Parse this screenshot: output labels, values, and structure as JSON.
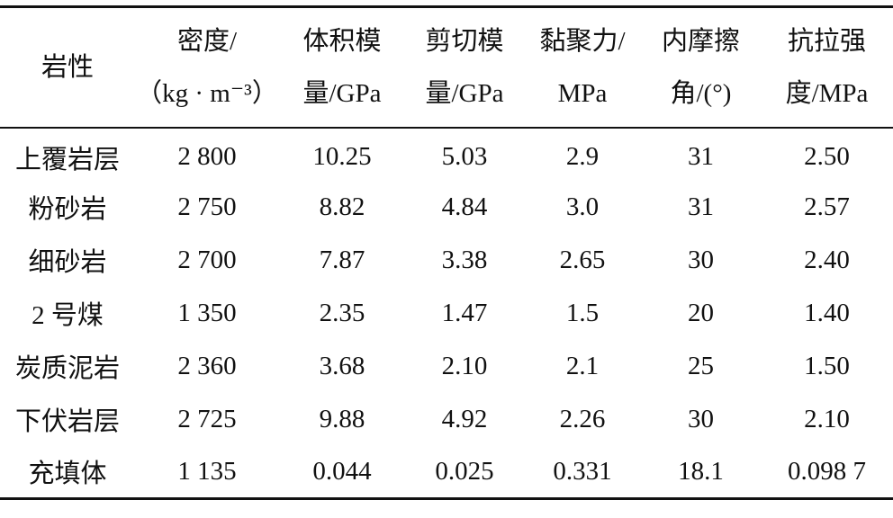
{
  "table": {
    "header": [
      [
        "岩性"
      ],
      [
        "密度/",
        "（kg · m⁻³）"
      ],
      [
        "体积模",
        "量/GPa"
      ],
      [
        "剪切模",
        "量/GPa"
      ],
      [
        "黏聚力/",
        "MPa"
      ],
      [
        "内摩擦",
        "角/(°)"
      ],
      [
        "抗拉强",
        "度/MPa"
      ]
    ],
    "rows": [
      [
        "上覆岩层",
        "2 800",
        "10.25",
        "5.03",
        "2.9",
        "31",
        "2.50"
      ],
      [
        "粉砂岩",
        "2 750",
        "8.82",
        "4.84",
        "3.0",
        "31",
        "2.57"
      ],
      [
        "细砂岩",
        "2 700",
        "7.87",
        "3.38",
        "2.65",
        "30",
        "2.40"
      ],
      [
        "2 号煤",
        "1 350",
        "2.35",
        "1.47",
        "1.5",
        "20",
        "1.40"
      ],
      [
        "炭质泥岩",
        "2 360",
        "3.68",
        "2.10",
        "2.1",
        "25",
        "1.50"
      ],
      [
        "下伏岩层",
        "2 725",
        "9.88",
        "4.92",
        "2.26",
        "30",
        "2.10"
      ],
      [
        "充填体",
        "1 135",
        "0.044",
        "0.025",
        "0.331",
        "18.1",
        "0.098 7"
      ]
    ]
  }
}
